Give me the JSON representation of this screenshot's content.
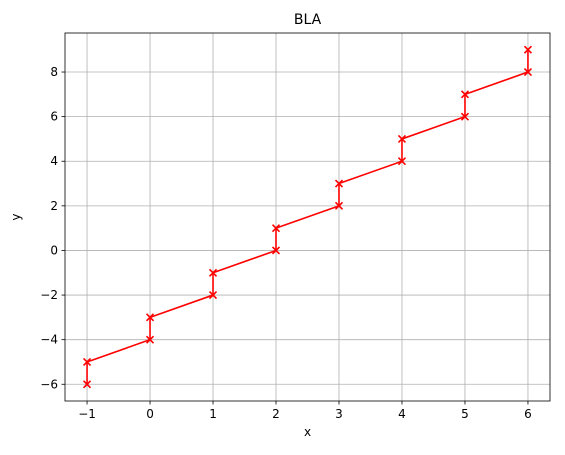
{
  "chart_data": {
    "type": "line",
    "title": "BLA",
    "xlabel": "x",
    "ylabel": "y",
    "xlim": [
      -1.35,
      6.35
    ],
    "ylim": [
      -6.75,
      9.75
    ],
    "xticks": [
      -1,
      0,
      1,
      2,
      3,
      4,
      5,
      6
    ],
    "yticks": [
      -6,
      -4,
      -2,
      0,
      2,
      4,
      6,
      8
    ],
    "xtick_labels": [
      "−1",
      "0",
      "1",
      "2",
      "3",
      "4",
      "5",
      "6"
    ],
    "ytick_labels": [
      "−6",
      "−4",
      "−2",
      "0",
      "2",
      "4",
      "6",
      "8"
    ],
    "grid": true,
    "series": [
      {
        "color": "#ff0000",
        "marker": "x",
        "x": [
          -1,
          -1,
          0,
          0,
          1,
          1,
          2,
          2,
          3,
          3,
          4,
          4,
          5,
          5,
          6,
          6
        ],
        "y": [
          -6,
          -5,
          -4,
          -3,
          -2,
          -1,
          0,
          1,
          2,
          3,
          4,
          5,
          6,
          7,
          8,
          9
        ]
      }
    ]
  }
}
